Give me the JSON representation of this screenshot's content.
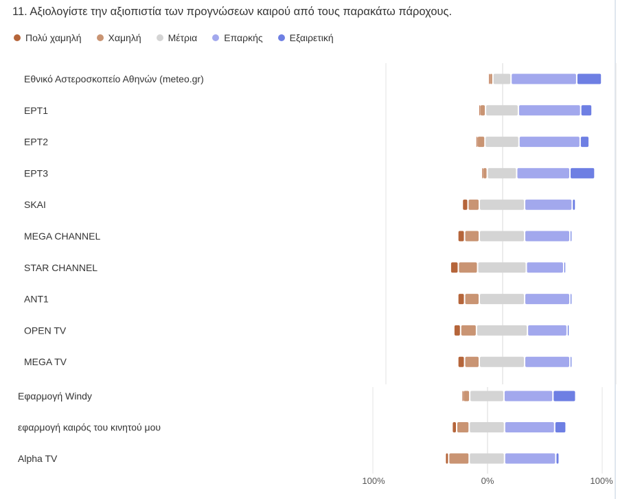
{
  "question": "11. Αξιολογίστε την αξιοπιστία των προγνώσεων καιρού από τους παρακάτω πάροχους.",
  "chart_data": {
    "type": "bar",
    "subtype": "diverging-stacked",
    "levels": [
      {
        "name": "Πολύ χαμηλή",
        "color": "#b5653a"
      },
      {
        "name": "Χαμηλή",
        "color": "#c99473"
      },
      {
        "name": "Μέτρια",
        "color": "#d4d4d4"
      },
      {
        "name": "Επαρκής",
        "color": "#a2a8ed"
      },
      {
        "name": "Εξαιρετική",
        "color": "#6e7fe3"
      }
    ],
    "xlim": [
      -100,
      100
    ],
    "xticks": [
      "100%",
      "0%",
      "100%"
    ],
    "legend_position": "top-left",
    "rows": [
      {
        "label": "Εθνικό Αστεροσκοπείο Αθηνών (meteo.gr)",
        "values": [
          1,
          3,
          16,
          58,
          22
        ]
      },
      {
        "label": "ΕΡΤ1",
        "values": [
          1,
          5,
          29,
          55,
          10
        ]
      },
      {
        "label": "ΕΡΤ2",
        "values": [
          1,
          7,
          30,
          54,
          8
        ]
      },
      {
        "label": "ΕΡΤ3",
        "values": [
          1,
          4,
          26,
          47,
          22
        ]
      },
      {
        "label": "SKAI",
        "values": [
          5,
          10,
          40,
          42,
          3
        ]
      },
      {
        "label": "MEGA CHANNEL",
        "values": [
          6,
          13,
          40,
          40,
          1
        ]
      },
      {
        "label": "STAR CHANNEL",
        "values": [
          7,
          17,
          43,
          33,
          1
        ]
      },
      {
        "label": "ANT1",
        "values": [
          6,
          13,
          40,
          40,
          1
        ]
      },
      {
        "label": "OPEN TV",
        "values": [
          6,
          14,
          45,
          35,
          2
        ]
      },
      {
        "label": "MEGA TV",
        "values": [
          6,
          13,
          40,
          40,
          1
        ]
      },
      {
        "label": "Εφαρμογή Windy",
        "values": [
          1,
          6,
          30,
          43,
          20
        ]
      },
      {
        "label": "εφαρμογή καιρός του κινητού μου",
        "values": [
          4,
          11,
          31,
          44,
          10
        ]
      },
      {
        "label": "Alpha TV",
        "values": [
          3,
          18,
          31,
          45,
          3
        ]
      }
    ]
  }
}
